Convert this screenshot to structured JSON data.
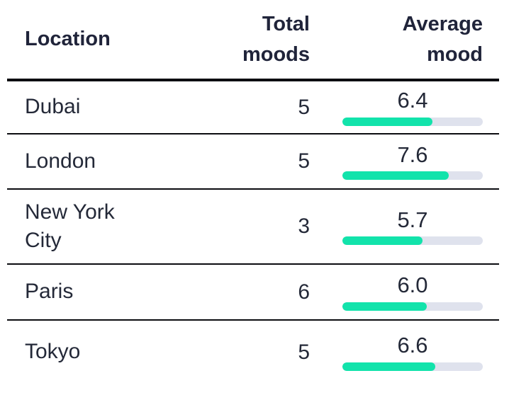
{
  "colors": {
    "bar_fill": "#12e3ab",
    "bar_track": "#dfe2ed",
    "text": "#242938",
    "heading": "#20243a",
    "divider": "#0b0c10",
    "bg": "#ffffff"
  },
  "table": {
    "columns": [
      {
        "label": "Location"
      },
      {
        "label": "Total moods"
      },
      {
        "label": "Average mood"
      }
    ],
    "rows": [
      {
        "location": "Dubai",
        "total_moods": "5",
        "average_mood": "6.4",
        "bar_percent": 64
      },
      {
        "location": "London",
        "total_moods": "5",
        "average_mood": "7.6",
        "bar_percent": 76
      },
      {
        "location": "New York City",
        "total_moods": "3",
        "average_mood": "5.7",
        "bar_percent": 57
      },
      {
        "location": "Paris",
        "total_moods": "6",
        "average_mood": "6.0",
        "bar_percent": 60
      },
      {
        "location": "Tokyo",
        "total_moods": "5",
        "average_mood": "6.6",
        "bar_percent": 66
      }
    ],
    "scale_max": 10
  },
  "chart_data": {
    "type": "table",
    "title": "",
    "columns": [
      "Location",
      "Total moods",
      "Average mood"
    ],
    "categories": [
      "Dubai",
      "London",
      "New York City",
      "Paris",
      "Tokyo"
    ],
    "series": [
      {
        "name": "Total moods",
        "values": [
          5,
          5,
          3,
          6,
          5
        ]
      },
      {
        "name": "Average mood",
        "values": [
          6.4,
          7.6,
          5.7,
          6.0,
          6.6
        ]
      }
    ],
    "bar_scale": [
      0,
      10
    ],
    "notes": "Average mood rendered as horizontal progress bar filled value/10"
  }
}
